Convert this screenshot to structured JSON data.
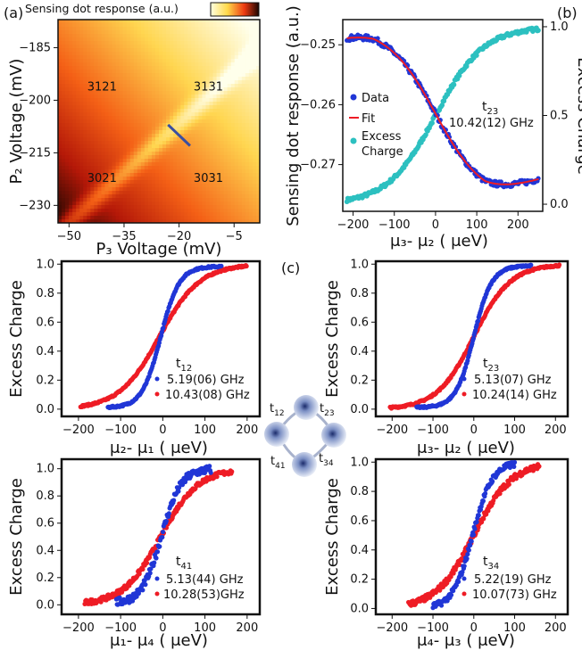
{
  "panels": {
    "a": "(a)",
    "b": "(b)",
    "c": "(c)"
  },
  "colors": {
    "blue": "#2036d6",
    "red": "#ee1c25",
    "cyan": "#2cc0c0",
    "navy": "#3a4fa0"
  },
  "chart_data": [
    {
      "id": "a",
      "type": "heatmap",
      "title": "Sensing dot response (a.u.)",
      "xlabel": "P₃ Voltage (mV)",
      "ylabel": "P₂ Voltage (mV)",
      "xticks": [
        -50,
        -35,
        -20,
        -5
      ],
      "xtick_labels": [
        "−50",
        "−35",
        "−20",
        "−5"
      ],
      "yticks": [
        -185,
        -200,
        -215,
        -230
      ],
      "ytick_labels": [
        "−185",
        "−200",
        "−215",
        "−230"
      ],
      "xlim": [
        -53,
        2
      ],
      "ylim": [
        -235,
        -177
      ],
      "region_labels": [
        {
          "text": "3121",
          "x": -41,
          "y": -196
        },
        {
          "text": "3131",
          "x": -12,
          "y": -196
        },
        {
          "text": "3021",
          "x": -41,
          "y": -222
        },
        {
          "text": "3031",
          "x": -12,
          "y": -222
        }
      ],
      "detuning_line": {
        "x": [
          -23,
          -17
        ],
        "y": [
          -207,
          -213
        ]
      }
    },
    {
      "id": "b",
      "type": "line",
      "xlabel": "μ₃- μ₂ ( μeV)",
      "ylabel": "Sensing dot response (a.u.)",
      "ylabel_right": "Excess Charge",
      "xticks": [
        -200,
        -100,
        0,
        100,
        200
      ],
      "xtick_labels": [
        "−200",
        "−100",
        "0",
        "100",
        "200"
      ],
      "xlim": [
        -225,
        260
      ],
      "yticks": [
        -0.25,
        -0.26,
        -0.27
      ],
      "ytick_labels": [
        "−0.25",
        "−0.26",
        "−0.27"
      ],
      "ylim": [
        -0.2778,
        -0.2458
      ],
      "yticks_right": [
        0.0,
        0.5,
        1.0
      ],
      "ytick_labels_right": [
        "0.0",
        "0.5",
        "1.0"
      ],
      "ylim_right": [
        -0.04,
        1.04
      ],
      "legend": [
        "Data",
        "Fit",
        "Excess\nCharge"
      ],
      "annotation": {
        "label": "t",
        "sub": "23",
        "value": "10.42(12) GHz"
      },
      "series": [
        {
          "name": "Data",
          "style": "points",
          "x_range": [
            -215,
            250
          ],
          "high": -0.247,
          "low": -0.276,
          "center": 0,
          "width": 58,
          "tail_rise": 0.0032
        },
        {
          "name": "Fit",
          "style": "line",
          "x_range": [
            -215,
            250
          ],
          "high": -0.247,
          "low": -0.276,
          "center": 0,
          "width": 58,
          "tail_rise": 0.0032
        },
        {
          "name": "Excess Charge",
          "style": "points",
          "x_range": [
            -215,
            250
          ],
          "from": 0.0,
          "to": 1.0,
          "center": 0,
          "width": 58
        }
      ]
    },
    {
      "id": "t12",
      "type": "line",
      "xlabel": "μ₂- μ₁ ( μeV)",
      "ylabel": "Excess Charge",
      "xticks": [
        -200,
        -100,
        0,
        100,
        200
      ],
      "xtick_labels": [
        "−200",
        "−100",
        "0",
        "100",
        "200"
      ],
      "xlim": [
        -240,
        230
      ],
      "yticks": [
        0.0,
        0.2,
        0.4,
        0.6,
        0.8,
        1.0
      ],
      "ytick_labels": [
        "0.0",
        "0.2",
        "0.4",
        "0.6",
        "0.8",
        "1.0"
      ],
      "ylim": [
        -0.05,
        1.02
      ],
      "annotation": {
        "label": "t",
        "sub": "12"
      },
      "series": [
        {
          "name": "5.19(06) GHz",
          "color": "blue",
          "x_range": [
            -130,
            140
          ],
          "center": -5,
          "width": 22,
          "lo": 0.01,
          "hi": 0.985
        },
        {
          "name": "10.43(08) GHz",
          "color": "red",
          "x_range": [
            -195,
            200
          ],
          "center": -8,
          "width": 48,
          "lo": 0.0,
          "hi": 1.0
        }
      ]
    },
    {
      "id": "t23",
      "type": "line",
      "xlabel": "μ₃- μ₂ ( μeV)",
      "ylabel": "Excess Charge",
      "xticks": [
        -200,
        -100,
        0,
        100,
        200
      ],
      "xtick_labels": [
        "−200",
        "−100",
        "0",
        "100",
        "200"
      ],
      "xlim": [
        -240,
        230
      ],
      "yticks": [
        0.0,
        0.2,
        0.4,
        0.6,
        0.8,
        1.0
      ],
      "ytick_labels": [
        "0.0",
        "0.2",
        "0.4",
        "0.6",
        "0.8",
        "1.0"
      ],
      "ylim": [
        -0.05,
        1.02
      ],
      "annotation": {
        "label": "t",
        "sub": "23"
      },
      "series": [
        {
          "name": "5.13(07) GHz",
          "color": "blue",
          "x_range": [
            -140,
            140
          ],
          "center": 0,
          "width": 22,
          "lo": 0.01,
          "hi": 0.99
        },
        {
          "name": "10.24(14) GHz",
          "color": "red",
          "x_range": [
            -205,
            210
          ],
          "center": 0,
          "width": 45,
          "lo": 0.0,
          "hi": 1.0
        }
      ]
    },
    {
      "id": "t41",
      "type": "line",
      "xlabel": "μ₁- μ₄ ( μeV)",
      "ylabel": "Excess Charge",
      "xticks": [
        -200,
        -100,
        0,
        100,
        200
      ],
      "xtick_labels": [
        "−200",
        "−100",
        "0",
        "100",
        "200"
      ],
      "xlim": [
        -240,
        230
      ],
      "yticks": [
        0.0,
        0.2,
        0.4,
        0.6,
        0.8,
        1.0
      ],
      "ytick_labels": [
        "0.0",
        "0.2",
        "0.4",
        "0.6",
        "0.8",
        "1.0"
      ],
      "ylim": [
        -0.07,
        1.07
      ],
      "annotation": {
        "label": "t",
        "sub": "41"
      },
      "series": [
        {
          "name": "5.13(44) GHz",
          "color": "blue",
          "x_range": [
            -110,
            115
          ],
          "center": -3,
          "width": 23,
          "lo": 0.01,
          "hi": 1.0,
          "noise": 0.03
        },
        {
          "name": "10.28(53)GHz",
          "color": "red",
          "x_range": [
            -185,
            165
          ],
          "center": -5,
          "width": 44,
          "lo": 0.0,
          "hi": 1.0,
          "noise": 0.018
        }
      ]
    },
    {
      "id": "t34",
      "type": "line",
      "xlabel": "μ₄- μ₃ ( μeV)",
      "ylabel": "Excess Charge",
      "xticks": [
        -200,
        -100,
        0,
        100,
        200
      ],
      "xtick_labels": [
        "−200",
        "−100",
        "0",
        "100",
        "200"
      ],
      "xlim": [
        -240,
        230
      ],
      "yticks": [
        0.0,
        0.2,
        0.4,
        0.6,
        0.8,
        1.0
      ],
      "ytick_labels": [
        "0.0",
        "0.2",
        "0.4",
        "0.6",
        "0.8",
        "1.0"
      ],
      "ylim": [
        -0.04,
        1.02
      ],
      "annotation": {
        "label": "t",
        "sub": "34"
      },
      "series": [
        {
          "name": "5.22(19) GHz",
          "color": "blue",
          "x_range": [
            -100,
            100
          ],
          "center": -3,
          "width": 24,
          "lo": 0.0,
          "hi": 1.0,
          "noise": 0.02
        },
        {
          "name": "10.07(73) GHz",
          "color": "red",
          "x_range": [
            -160,
            160
          ],
          "center": 0,
          "width": 46,
          "lo": 0.0,
          "hi": 1.0,
          "noise": 0.02
        }
      ]
    }
  ],
  "schematic": {
    "couplings": [
      {
        "label": "t",
        "sub": "12"
      },
      {
        "label": "t",
        "sub": "23"
      },
      {
        "label": "t",
        "sub": "41"
      },
      {
        "label": "t",
        "sub": "34"
      }
    ]
  }
}
